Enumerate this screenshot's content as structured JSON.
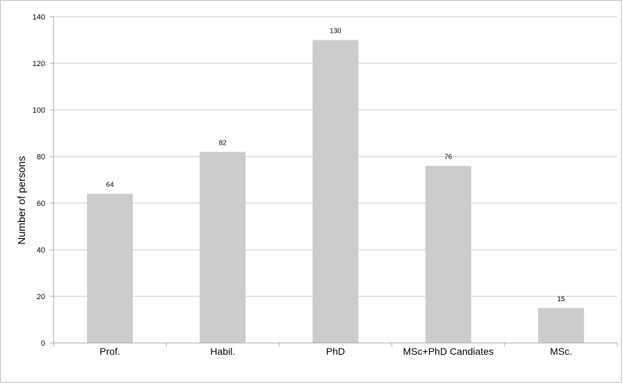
{
  "chart_data": {
    "type": "bar",
    "title": "",
    "xlabel": "",
    "ylabel": "Number of persons",
    "ylim": [
      0,
      140
    ],
    "yticks": [
      0,
      20,
      40,
      60,
      80,
      100,
      120,
      140
    ],
    "grid": true,
    "legend": "none",
    "bar_color": "#cccccc",
    "grid_color": "#c8c8c8",
    "axis_color": "#a6a6a6",
    "categories": [
      "Prof.",
      "Habil.",
      "PhD",
      "MSc+PhD Candiates",
      "MSc."
    ],
    "values": [
      64,
      82,
      130,
      76,
      15
    ]
  }
}
